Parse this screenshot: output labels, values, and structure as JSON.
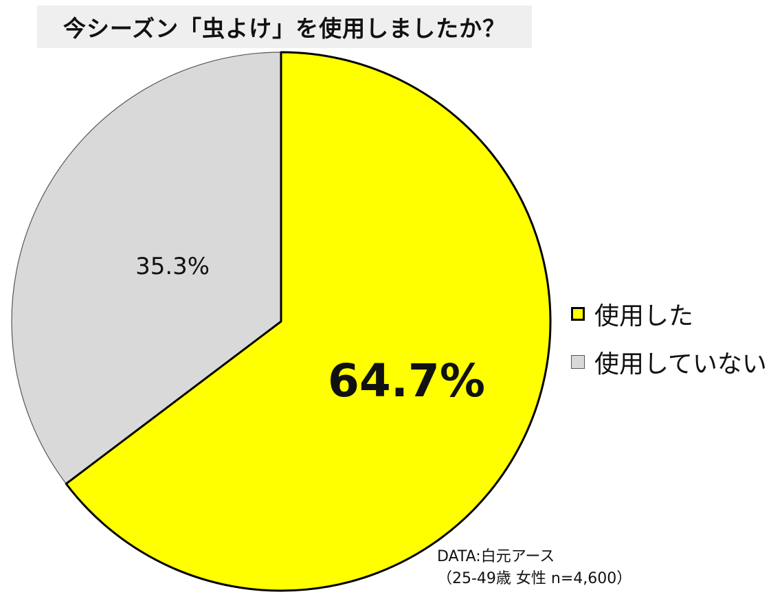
{
  "chart_data": {
    "type": "pie",
    "title": "今シーズン「虫よけ」を使用しましたか？",
    "slices": [
      {
        "name": "使用した",
        "value": 64.7,
        "label": "64.7%",
        "color": "#ffff00",
        "stroke": "#000000"
      },
      {
        "name": "使用していない",
        "value": 35.3,
        "label": "35.3%",
        "color": "#d9d9d9",
        "stroke": "#555555"
      }
    ],
    "start": "12 o'clock",
    "direction": "clockwise",
    "legend_position": "right",
    "source": {
      "line1": "DATA:白元アース",
      "line2": "（25-49歳 女性 n=4,600）"
    }
  }
}
